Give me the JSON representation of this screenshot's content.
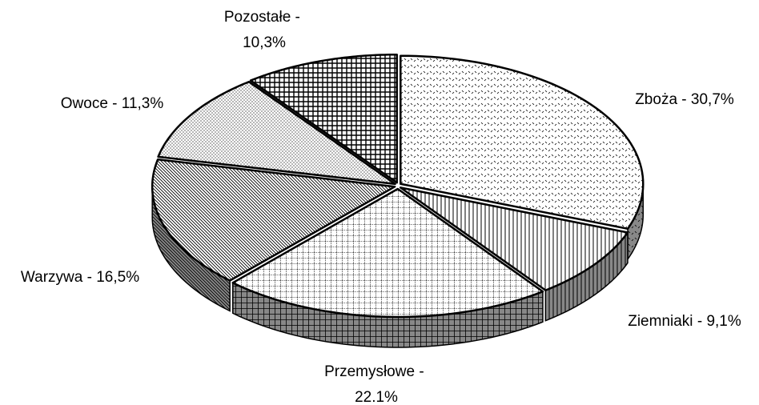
{
  "chart_data": {
    "type": "pie3d",
    "categories": [
      "Zboża",
      "Ziemniaki",
      "Przemysłowe",
      "Warzywa",
      "Owoce",
      "Pozostałe"
    ],
    "label_separator": " - ",
    "values": [
      30.7,
      9.1,
      22.1,
      16.5,
      11.3,
      10.3
    ],
    "value_labels": [
      "30,7%",
      "9,1%",
      "22.1%",
      "16,5%",
      "11,3%",
      "10,3%"
    ]
  }
}
